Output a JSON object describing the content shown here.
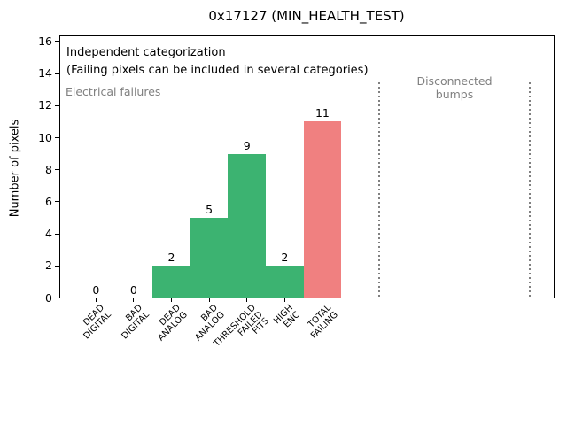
{
  "title": "0x17127 (MIN_HEALTH_TEST)",
  "ylabel": "Number of pixels",
  "annotations": {
    "independent_line1": "Independent categorization",
    "independent_line2": "(Failing pixels can be included in several categories)",
    "electrical_failures": "Electrical failures",
    "disconnected_bumps": "Disconnected\nbumps"
  },
  "colors": {
    "bar_green": "#3cb371",
    "bar_red": "#f08080",
    "gray_text": "#808080",
    "axis": "#000000",
    "background": "#ffffff"
  },
  "chart_data": {
    "type": "bar",
    "title": "0x17127 (MIN_HEALTH_TEST)",
    "xlabel": "",
    "ylabel": "Number of pixels",
    "categories": [
      "DEAD\nDIGITAL",
      "BAD\nDIGITAL",
      "DEAD\nANALOG",
      "BAD\nANALOG",
      "THRESHOLD\nFAILED\nFITS",
      "HIGH\nENC",
      "TOTAL\nFAILING"
    ],
    "values": [
      0,
      0,
      2,
      5,
      9,
      2,
      11
    ],
    "bar_colors": [
      "#3cb371",
      "#3cb371",
      "#3cb371",
      "#3cb371",
      "#3cb371",
      "#3cb371",
      "#f08080"
    ],
    "data_labels": [
      "0",
      "0",
      "2",
      "5",
      "9",
      "2",
      "11"
    ],
    "yticks": [
      0,
      2,
      4,
      6,
      8,
      10,
      12,
      14,
      16
    ],
    "ylim": [
      0,
      16.4
    ],
    "xlim": [
      -1,
      12.2
    ],
    "grid": "off",
    "legend": "none",
    "vlines": {
      "x_positions": [
        7.5,
        11.5
      ],
      "style": "dotted",
      "color": "#808080"
    },
    "region_labels": [
      {
        "text": "Electrical failures",
        "region": "left_of_first_vline"
      },
      {
        "text": "Disconnected\nbumps",
        "region": "between_vlines"
      }
    ]
  }
}
